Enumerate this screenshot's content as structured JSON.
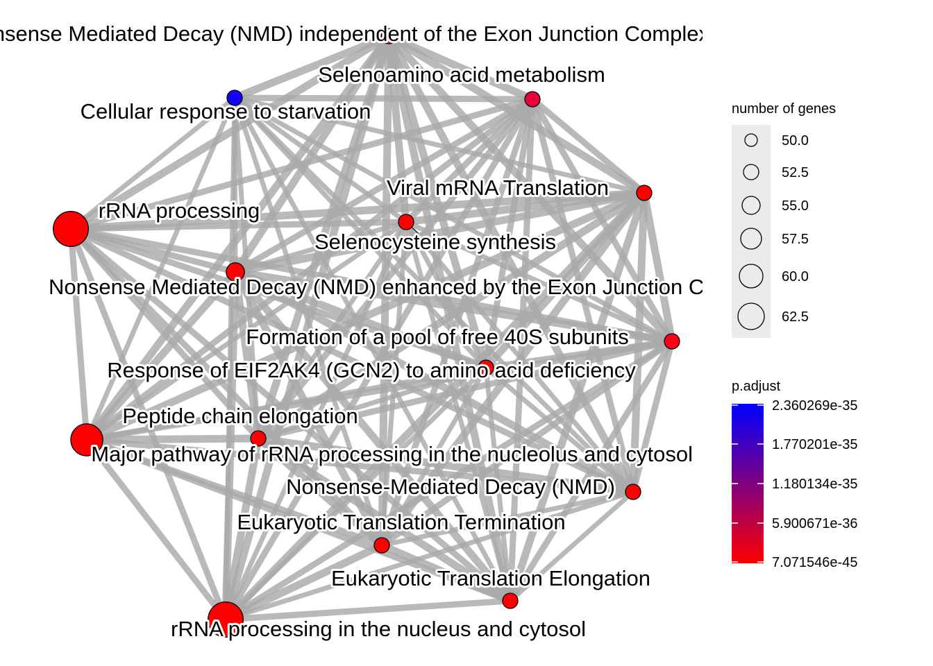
{
  "network": {
    "edge_color": "#a9a9a9",
    "nodes": [
      {
        "id": "nmd-ejc-independent",
        "label": "Nonsense Mediated Decay (NMD) independent of the Exon Junction Complex (EJC)",
        "genes": 50,
        "color": "#ff0000"
      },
      {
        "id": "selenoamino",
        "label": "Selenoamino acid metabolism",
        "genes": 50,
        "color": "#e8003a"
      },
      {
        "id": "starvation",
        "label": "Cellular response to starvation",
        "genes": 50,
        "color": "#1400ff"
      },
      {
        "id": "viral-mrna",
        "label": "Viral mRNA Translation",
        "genes": 50,
        "color": "#ff0000"
      },
      {
        "id": "rrna-processing",
        "label": "rRNA processing",
        "genes": 63,
        "color": "#ff0000"
      },
      {
        "id": "selenocysteine",
        "label": "Selenocysteine synthesis",
        "genes": 50,
        "color": "#ff0000"
      },
      {
        "id": "nmd-ejc-enhanced",
        "label": "Nonsense Mediated Decay (NMD) enhanced by the Exon Junction Complex (EJC)",
        "genes": 52,
        "color": "#ff0000"
      },
      {
        "id": "pool-40s",
        "label": "Formation of a pool of free 40S subunits",
        "genes": 50,
        "color": "#ff0018"
      },
      {
        "id": "eif2ak4",
        "label": "Response of EIF2AK4 (GCN2) to amino acid deficiency",
        "genes": 50,
        "color": "#ff0000"
      },
      {
        "id": "peptide-chain",
        "label": "Peptide chain elongation",
        "genes": 50,
        "color": "#ff0000"
      },
      {
        "id": "major-rrna",
        "label": "Major pathway of rRNA processing in the nucleolus and cytosol",
        "genes": 61,
        "color": "#ff0000"
      },
      {
        "id": "nmd",
        "label": "Nonsense-Mediated Decay (NMD)",
        "genes": 50,
        "color": "#ff0000"
      },
      {
        "id": "translation-termination",
        "label": "Eukaryotic Translation Termination",
        "genes": 50,
        "color": "#ff0000"
      },
      {
        "id": "translation-elongation",
        "label": "Eukaryotic Translation Elongation",
        "genes": 50,
        "color": "#ff0000"
      },
      {
        "id": "rrna-nucleus",
        "label": "rRNA processing in the nucleus and cytosol",
        "genes": 63,
        "color": "#ff0000"
      }
    ]
  },
  "legend": {
    "size": {
      "title": "number of genes",
      "items": [
        {
          "label": "50.0",
          "value": 50.0
        },
        {
          "label": "52.5",
          "value": 52.5
        },
        {
          "label": "55.0",
          "value": 55.0
        },
        {
          "label": "57.5",
          "value": 57.5
        },
        {
          "label": "60.0",
          "value": 60.0
        },
        {
          "label": "62.5",
          "value": 62.5
        }
      ]
    },
    "color": {
      "title": "p.adjust",
      "low_color": "#ff0000",
      "high_color": "#0000ff",
      "ticks": [
        "2.360269e-35",
        "1.770201e-35",
        "1.180134e-35",
        "5.900671e-36",
        "7.071546e-45"
      ]
    }
  }
}
